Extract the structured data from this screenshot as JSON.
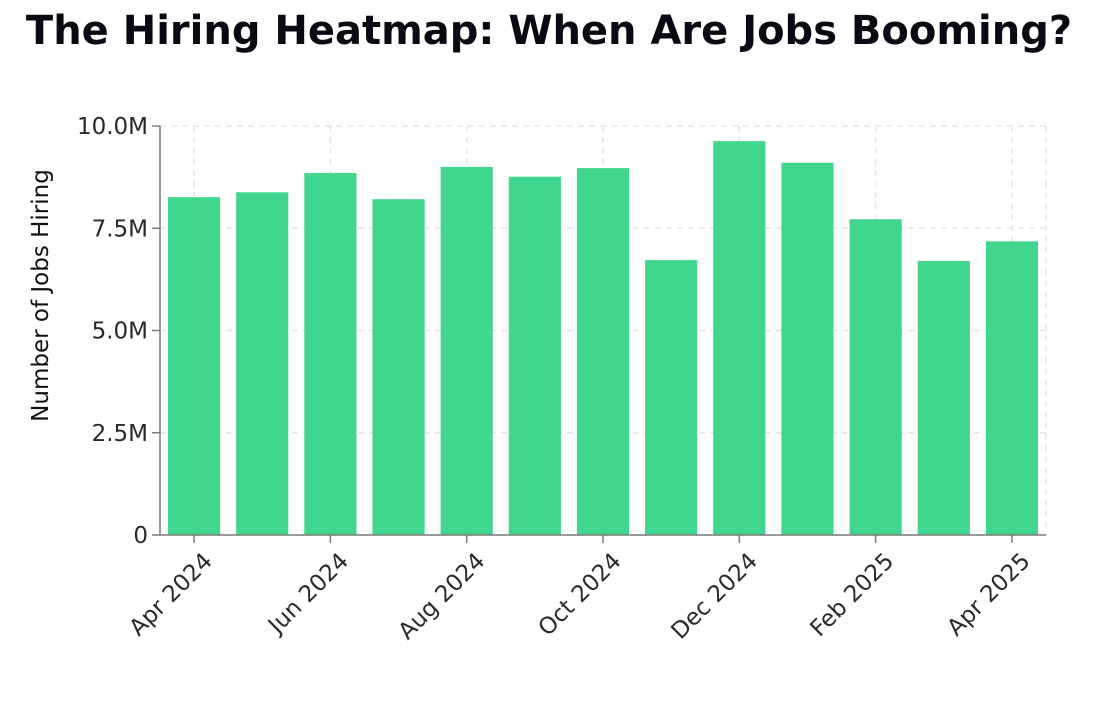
{
  "chart_data": {
    "type": "bar",
    "title": "The Hiring Heatmap: When Are Jobs Booming?",
    "xlabel": "",
    "ylabel": "Number of Jobs Hiring",
    "x": [
      "2024-04",
      "2024-05",
      "2024-06",
      "2024-07",
      "2024-08",
      "2024-09",
      "2024-10",
      "2024-11",
      "2024-12",
      "2025-01",
      "2025-02",
      "2025-03",
      "2025-04"
    ],
    "values": [
      8260000,
      8380000,
      8850000,
      8210000,
      9000000,
      8760000,
      8970000,
      6720000,
      9630000,
      9100000,
      7720000,
      6700000,
      7180000
    ],
    "x_ticks": [
      "Apr 2024",
      "Jun 2024",
      "Aug 2024",
      "Oct 2024",
      "Dec 2024",
      "Feb 2025",
      "Apr 2025"
    ],
    "y_ticks": [
      "0",
      "2.5M",
      "5.0M",
      "7.5M",
      "10.0M"
    ],
    "ylim": [
      0,
      10000000
    ],
    "grid": true,
    "legend": "none",
    "colors": {
      "bar": "#41d68e",
      "grid": "#e6e6e6",
      "axis": "#7a7a7a"
    }
  }
}
